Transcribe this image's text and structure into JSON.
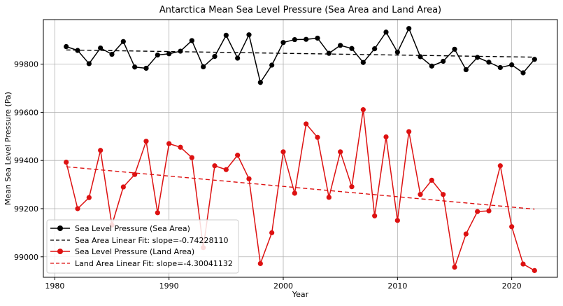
{
  "chart_data": {
    "type": "line",
    "title": "Antarctica Mean Sea Level Pressure (Sea Area and Land Area)",
    "xlabel": "Year",
    "ylabel": "Mean Sea Level Pressure (Pa)",
    "xlim": [
      1979,
      2024
    ],
    "ylim": [
      98915,
      99985
    ],
    "grid": true,
    "legend_position": "lower-left",
    "x": [
      1981,
      1982,
      1983,
      1984,
      1985,
      1986,
      1987,
      1988,
      1989,
      1990,
      1991,
      1992,
      1993,
      1994,
      1995,
      1996,
      1997,
      1998,
      1999,
      2000,
      2001,
      2002,
      2003,
      2004,
      2005,
      2006,
      2007,
      2008,
      2009,
      2010,
      2011,
      2012,
      2013,
      2014,
      2015,
      2016,
      2017,
      2018,
      2019,
      2020,
      2021,
      2022
    ],
    "xticks": [
      {
        "value": 1980,
        "label": "1980"
      },
      {
        "value": 1990,
        "label": "1990"
      },
      {
        "value": 2000,
        "label": "2000"
      },
      {
        "value": 2010,
        "label": "2010"
      },
      {
        "value": 2020,
        "label": "2020"
      }
    ],
    "yticks": [
      {
        "value": 99000,
        "label": "99000"
      },
      {
        "value": 99200,
        "label": "99200"
      },
      {
        "value": 99400,
        "label": "99400"
      },
      {
        "value": 99600,
        "label": "99600"
      },
      {
        "value": 99800,
        "label": "99800"
      }
    ],
    "series": [
      {
        "name": "Sea Level Pressure (Sea Area)",
        "kind": "line-marker",
        "color": "#000000",
        "values": [
          99873,
          99857,
          99802,
          99867,
          99841,
          99894,
          99788,
          99783,
          99838,
          99843,
          99854,
          99898,
          99789,
          99832,
          99920,
          99825,
          99922,
          99724,
          99796,
          99890,
          99902,
          99903,
          99908,
          99845,
          99878,
          99865,
          99807,
          99864,
          99933,
          99850,
          99948,
          99831,
          99792,
          99812,
          99862,
          99777,
          99828,
          99808,
          99786,
          99797,
          99764,
          99820
        ]
      },
      {
        "name": "Sea Area Linear Fit: slope=-0.74228110",
        "kind": "fit",
        "color": "#000000",
        "slope": -0.7422811,
        "x_range": [
          1981,
          2022
        ],
        "y_range": [
          99859,
          99829
        ]
      },
      {
        "name": "Sea Level Pressure (Land Area)",
        "kind": "line-marker",
        "color": "#dd1111",
        "values": [
          99393,
          99200,
          99246,
          99442,
          99132,
          99290,
          99342,
          99480,
          99183,
          99470,
          99455,
          99412,
          99038,
          99378,
          99362,
          99422,
          99324,
          98972,
          99100,
          99436,
          99264,
          99552,
          99496,
          99247,
          99436,
          99291,
          99611,
          99170,
          99498,
          99151,
          99520,
          99259,
          99318,
          99259,
          98957,
          99095,
          99188,
          99191,
          99378,
          99125,
          98970,
          98943
        ]
      },
      {
        "name": "Land Area Linear Fit: slope=-4.30041132",
        "kind": "fit",
        "color": "#dd1111",
        "slope": -4.30041132,
        "x_range": [
          1981,
          2022
        ],
        "y_range": [
          99374,
          99198
        ]
      }
    ]
  }
}
